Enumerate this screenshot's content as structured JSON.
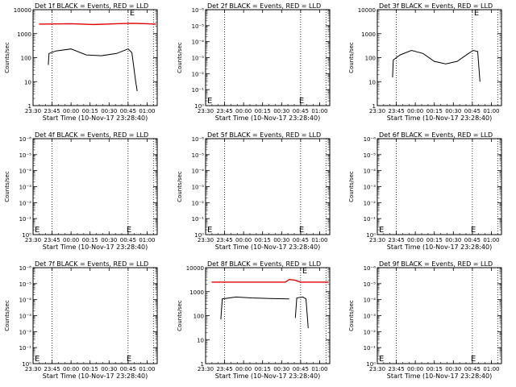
{
  "x_tick_labels": [
    "23:30",
    "23:45",
    "00:00",
    "00:15",
    "00:30",
    "00:45",
    "01:00"
  ],
  "xlabel": "Start Time (10-Nov-17 23:28:40)",
  "ylabel": "Counts/sec",
  "colors": {
    "events": "#000000",
    "lld": "#e00000"
  },
  "chart_data": [
    {
      "type": "line",
      "title": "Det 1f BLACK = Events, RED = LLD",
      "xlim": [
        "23:30",
        "01:08"
      ],
      "yscale": "log",
      "ylim": [
        1,
        10000
      ],
      "y_tick_labels": [
        "1",
        "10",
        "100",
        "1000",
        "10000"
      ],
      "vlines": [
        "23:45",
        "00:45",
        "01:05"
      ],
      "series": [
        {
          "role": "events",
          "points": [
            [
              23.7,
              50
            ],
            [
              23.71,
              150
            ],
            [
              23.8,
              190
            ],
            [
              24.0,
              230
            ],
            [
              24.2,
              130
            ],
            [
              24.4,
              120
            ],
            [
              24.6,
              150
            ],
            [
              24.75,
              230
            ],
            [
              24.8,
              160
            ],
            [
              24.85,
              10
            ],
            [
              24.87,
              4
            ]
          ]
        },
        {
          "role": "lld",
          "points": [
            [
              23.58,
              2500
            ],
            [
              24.0,
              2600
            ],
            [
              24.3,
              2400
            ],
            [
              24.6,
              2600
            ],
            [
              24.8,
              2700
            ],
            [
              25.0,
              2600
            ],
            [
              25.12,
              2500
            ]
          ]
        }
      ],
      "markers": [
        "E"
      ]
    },
    {
      "type": "line",
      "title": "Det 2f BLACK = Events, RED = LLD",
      "xlim": [
        "23:30",
        "01:08"
      ],
      "yscale": "log",
      "ylim": [
        1,
        1e-06
      ],
      "y_tick_labels": [
        "10⁰",
        "10⁻¹",
        "10⁻²",
        "10⁻³",
        "10⁻⁴",
        "10⁻⁵",
        "10⁻⁶"
      ],
      "vlines": [
        "23:45",
        "00:45",
        "01:05"
      ],
      "series": [],
      "markers": [
        "E",
        "E"
      ]
    },
    {
      "type": "line",
      "title": "Det 3f BLACK = Events, RED = LLD",
      "xlim": [
        "23:30",
        "01:08"
      ],
      "yscale": "log",
      "ylim": [
        1,
        10000
      ],
      "y_tick_labels": [
        "1",
        "10",
        "100",
        "1000",
        "10000"
      ],
      "vlines": [
        "23:45",
        "00:45",
        "01:05"
      ],
      "series": [
        {
          "role": "events",
          "points": [
            [
              23.7,
              15
            ],
            [
              23.71,
              80
            ],
            [
              23.8,
              130
            ],
            [
              23.95,
              200
            ],
            [
              24.1,
              150
            ],
            [
              24.25,
              70
            ],
            [
              24.4,
              55
            ],
            [
              24.55,
              70
            ],
            [
              24.7,
              150
            ],
            [
              24.76,
              200
            ],
            [
              24.82,
              180
            ],
            [
              24.85,
              10
            ]
          ]
        }
      ],
      "markers": [
        "E"
      ]
    },
    {
      "type": "line",
      "title": "Det 4f BLACK = Events, RED = LLD",
      "xlim": [
        "23:30",
        "01:08"
      ],
      "yscale": "log",
      "ylim": [
        1,
        1e-06
      ],
      "y_tick_labels": [
        "10⁰",
        "10⁻¹",
        "10⁻²",
        "10⁻³",
        "10⁻⁴",
        "10⁻⁵",
        "10⁻⁶"
      ],
      "vlines": [
        "23:45",
        "00:45",
        "01:05"
      ],
      "series": [],
      "markers": [
        "E",
        "E"
      ]
    },
    {
      "type": "line",
      "title": "Det 5f BLACK = Events, RED = LLD",
      "xlim": [
        "23:30",
        "01:08"
      ],
      "yscale": "log",
      "ylim": [
        1,
        1e-06
      ],
      "y_tick_labels": [
        "10⁰",
        "10⁻¹",
        "10⁻²",
        "10⁻³",
        "10⁻⁴",
        "10⁻⁵",
        "10⁻⁶"
      ],
      "vlines": [
        "23:45",
        "00:45",
        "01:05"
      ],
      "series": [],
      "markers": [
        "E",
        "E"
      ]
    },
    {
      "type": "line",
      "title": "Det 6f BLACK = Events, RED = LLD",
      "xlim": [
        "23:30",
        "01:08"
      ],
      "yscale": "log",
      "ylim": [
        1,
        1e-06
      ],
      "y_tick_labels": [
        "10⁰",
        "10⁻¹",
        "10⁻²",
        "10⁻³",
        "10⁻⁴",
        "10⁻⁵",
        "10⁻⁶"
      ],
      "vlines": [
        "23:45",
        "00:45",
        "01:05"
      ],
      "series": [],
      "markers": [
        "E",
        "E"
      ]
    },
    {
      "type": "line",
      "title": "Det 7f BLACK = Events, RED = LLD",
      "xlim": [
        "23:30",
        "01:08"
      ],
      "yscale": "log",
      "ylim": [
        1,
        1e-06
      ],
      "y_tick_labels": [
        "10⁰",
        "10⁻¹",
        "10⁻²",
        "10⁻³",
        "10⁻⁴",
        "10⁻⁵",
        "10⁻⁶"
      ],
      "vlines": [
        "23:45",
        "00:45",
        "01:05"
      ],
      "series": [],
      "markers": [
        "E",
        "E"
      ]
    },
    {
      "type": "line",
      "title": "Det 8f BLACK = Events, RED = LLD",
      "xlim": [
        "23:30",
        "01:08"
      ],
      "yscale": "log",
      "ylim": [
        1,
        10000
      ],
      "y_tick_labels": [
        "1",
        "10",
        "100",
        "1000",
        "10000"
      ],
      "vlines": [
        "23:45",
        "00:45",
        "01:05"
      ],
      "series": [
        {
          "role": "events",
          "points": [
            [
              23.7,
              70
            ],
            [
              23.72,
              500
            ],
            [
              23.9,
              600
            ],
            [
              24.1,
              550
            ],
            [
              24.35,
              520
            ],
            [
              24.6,
              500
            ]
          ]
        },
        {
          "role": "events",
          "points": [
            [
              24.68,
              80
            ],
            [
              24.7,
              550
            ],
            [
              24.78,
              600
            ],
            [
              24.82,
              500
            ],
            [
              24.85,
              30
            ]
          ]
        },
        {
          "role": "lld",
          "points": [
            [
              23.58,
              2500
            ],
            [
              24.0,
              2500
            ],
            [
              24.55,
              2500
            ],
            [
              24.6,
              3200
            ],
            [
              24.68,
              3000
            ],
            [
              24.75,
              2500
            ],
            [
              25.0,
              2500
            ],
            [
              25.12,
              2500
            ]
          ]
        }
      ],
      "markers": [
        "E"
      ]
    },
    {
      "type": "line",
      "title": "Det 9f BLACK = Events, RED = LLD",
      "xlim": [
        "23:30",
        "01:08"
      ],
      "yscale": "log",
      "ylim": [
        1,
        1e-06
      ],
      "y_tick_labels": [
        "10⁰",
        "10⁻¹",
        "10⁻²",
        "10⁻³",
        "10⁻⁴",
        "10⁻⁵",
        "10⁻⁶"
      ],
      "vlines": [
        "23:45",
        "00:45",
        "01:05"
      ],
      "series": [],
      "markers": [
        "E",
        "E"
      ]
    }
  ]
}
